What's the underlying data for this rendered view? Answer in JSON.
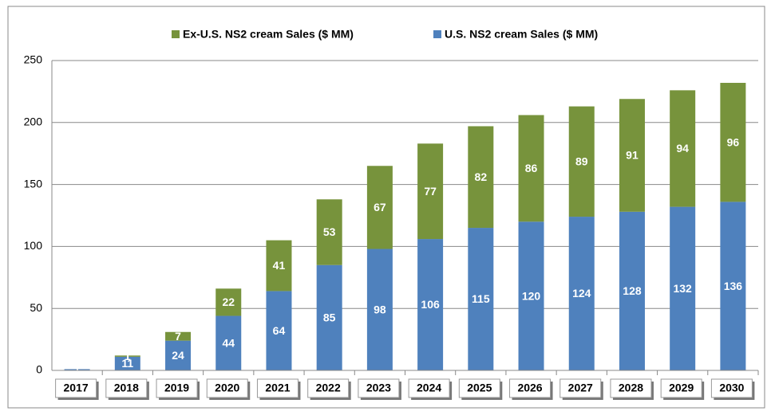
{
  "chart_data": {
    "type": "stacked_bar",
    "categories": [
      "2017",
      "2018",
      "2019",
      "2020",
      "2021",
      "2022",
      "2023",
      "2024",
      "2025",
      "2026",
      "2027",
      "2028",
      "2029",
      "2030"
    ],
    "series": [
      {
        "name": "U.S. NS2 cream Sales ($ MM)",
        "color": "#4f81bd",
        "values": [
          1,
          11,
          24,
          44,
          64,
          85,
          98,
          106,
          115,
          120,
          124,
          128,
          132,
          136
        ]
      },
      {
        "name": "Ex-U.S. NS2 cream Sales ($ MM)",
        "color": "#77933c",
        "values": [
          0,
          1,
          7,
          22,
          41,
          53,
          67,
          77,
          82,
          86,
          89,
          91,
          94,
          96
        ]
      }
    ],
    "ylim": [
      0,
      250
    ],
    "yticks": [
      0,
      50,
      100,
      150,
      200,
      250
    ],
    "grid": true,
    "legend": "top"
  }
}
